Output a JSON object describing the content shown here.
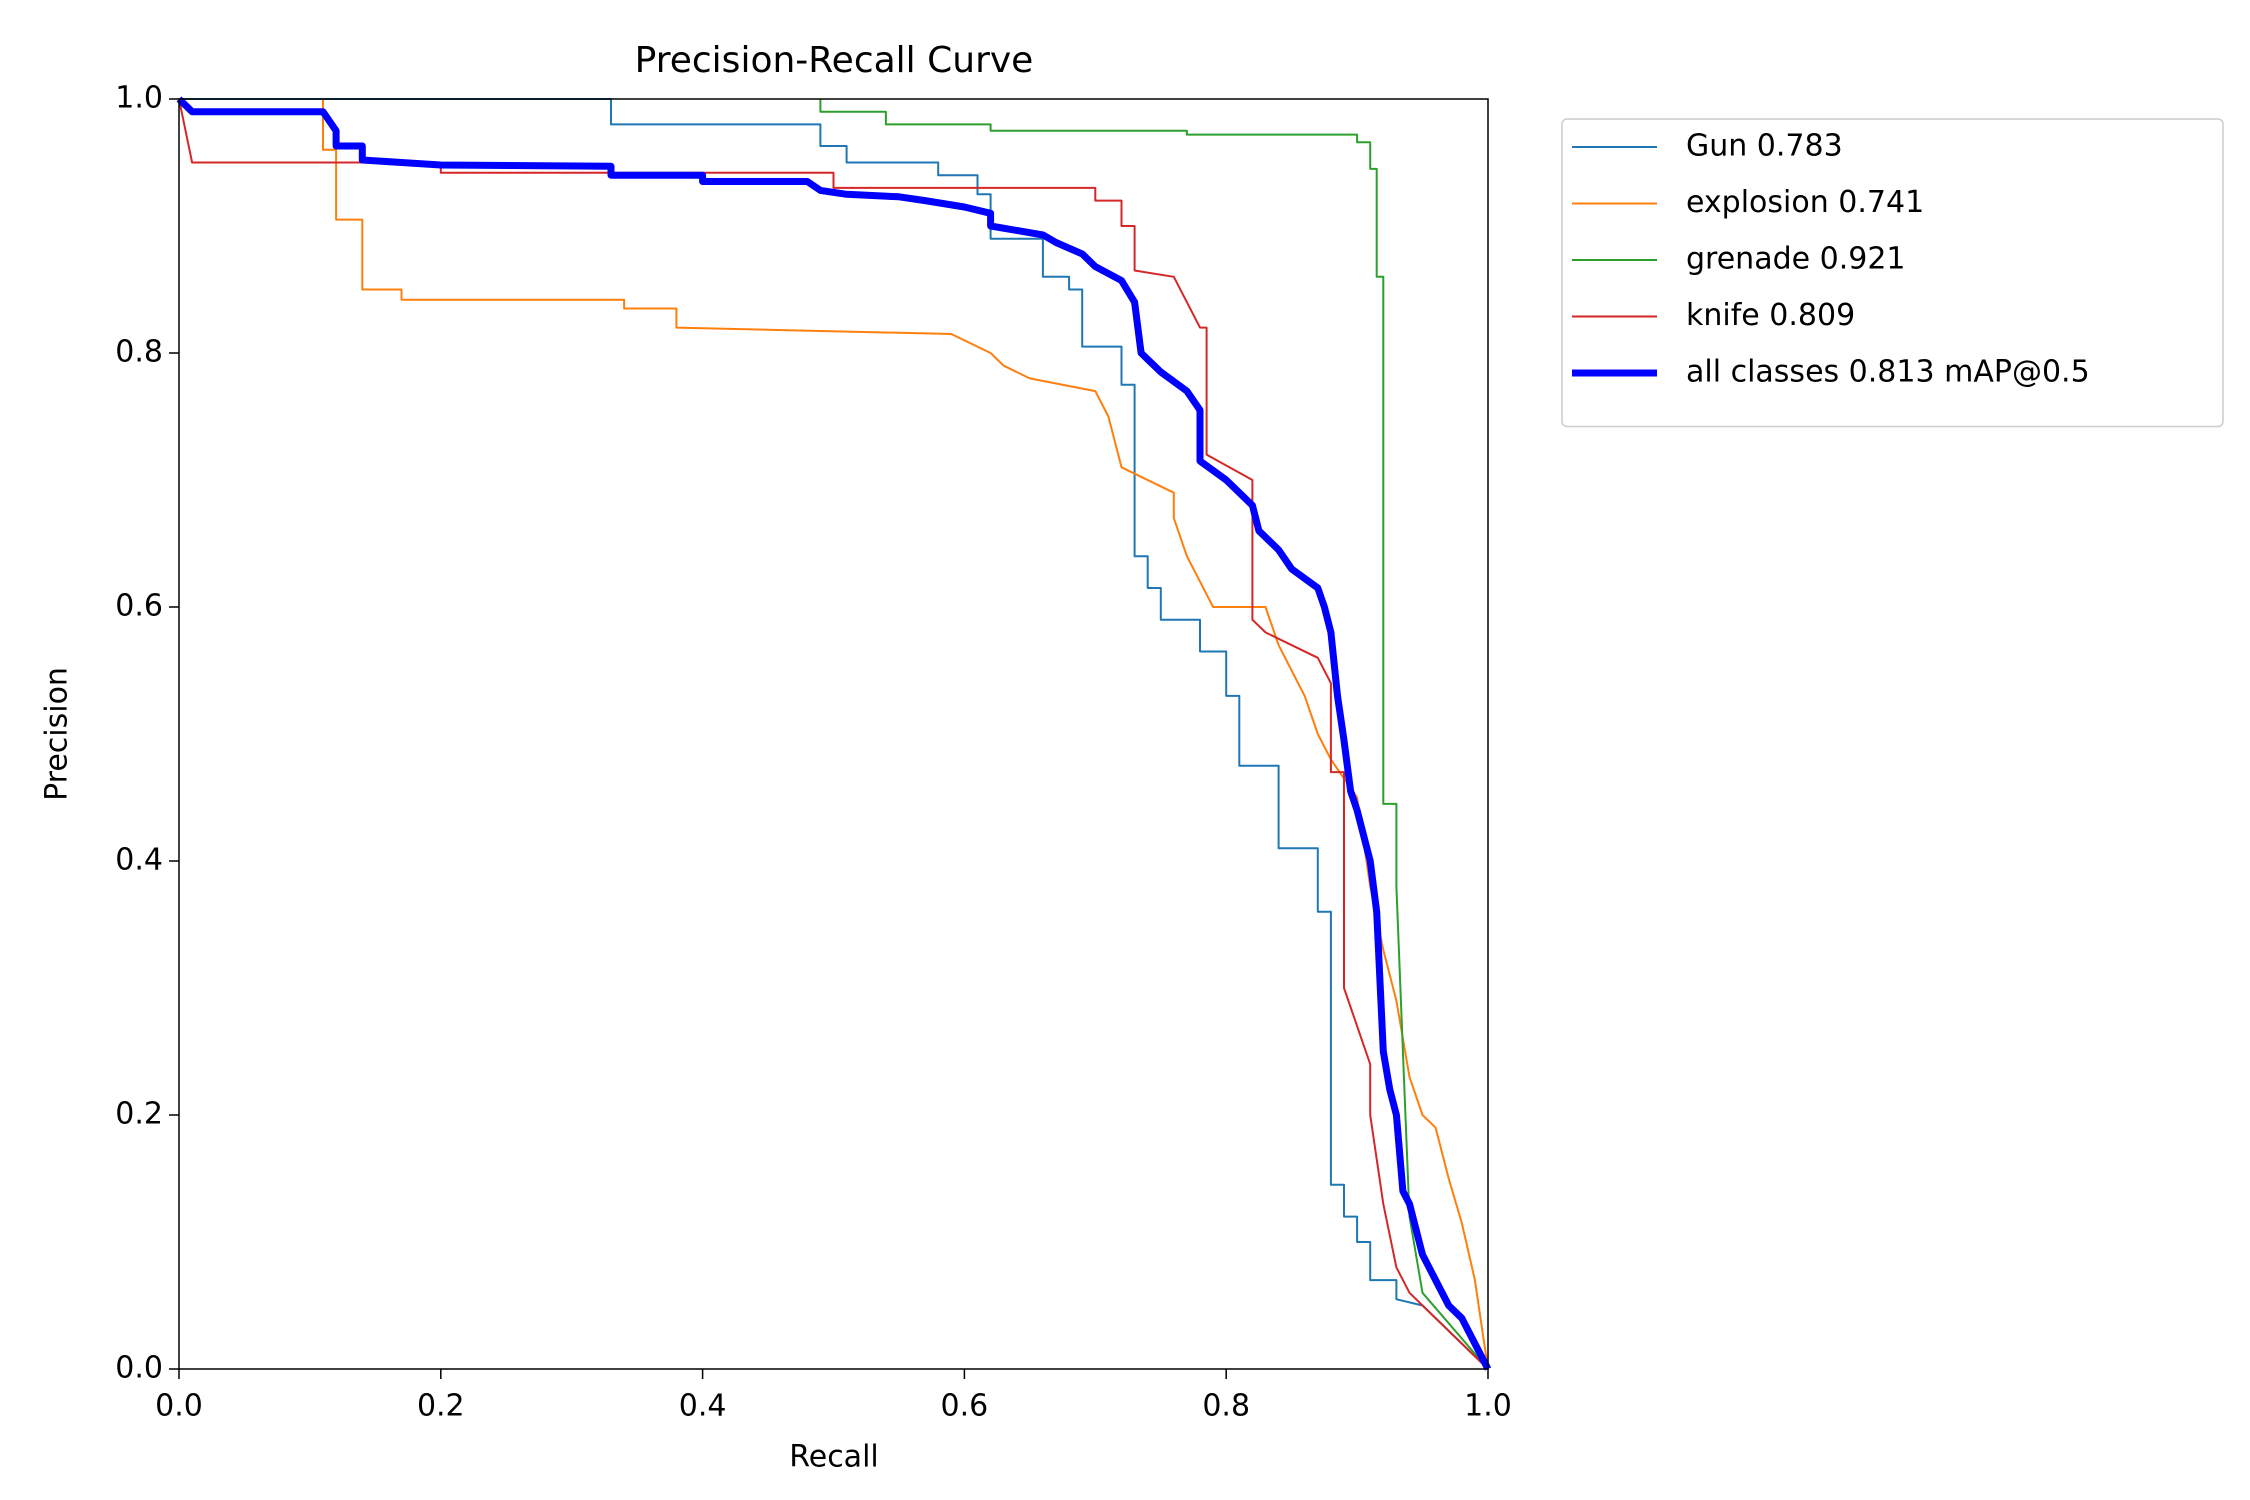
{
  "chart_data": {
    "type": "line",
    "title": "Precision-Recall Curve",
    "x_label": "Recall",
    "y_label": "Precision",
    "xlim": [
      0,
      1
    ],
    "ylim": [
      0,
      1
    ],
    "xticks": [
      {
        "value": 0,
        "label": "0.0"
      },
      0.2,
      0.4,
      0.6,
      0.8,
      {
        "value": 1,
        "label": "1.0"
      }
    ],
    "yticks": [
      {
        "value": 0,
        "label": "0.0"
      },
      0.2,
      0.4,
      0.6,
      0.8,
      {
        "value": 1,
        "label": "1.0"
      }
    ],
    "grid": false,
    "legend": "outside-upper-right",
    "series": [
      {
        "name": "Gun 0.783",
        "color": "#1f77b4",
        "width": 2,
        "x": [
          0,
          0.33,
          0.33,
          0.49,
          0.49,
          0.51,
          0.51,
          0.58,
          0.58,
          0.61,
          0.61,
          0.62,
          0.62,
          0.66,
          0.66,
          0.68,
          0.68,
          0.69,
          0.69,
          0.72,
          0.72,
          0.73,
          0.73,
          0.74,
          0.74,
          0.75,
          0.75,
          0.78,
          0.78,
          0.8,
          0.8,
          0.81,
          0.81,
          0.84,
          0.84,
          0.87,
          0.87,
          0.88,
          0.88,
          0.89,
          0.89,
          0.9,
          0.9,
          0.91,
          0.91,
          0.93,
          0.93,
          0.95,
          1.0
        ],
        "values": [
          1.0,
          1.0,
          0.98,
          0.98,
          0.963,
          0.963,
          0.95,
          0.95,
          0.94,
          0.94,
          0.925,
          0.925,
          0.89,
          0.89,
          0.86,
          0.86,
          0.85,
          0.85,
          0.805,
          0.805,
          0.775,
          0.775,
          0.64,
          0.64,
          0.615,
          0.615,
          0.59,
          0.59,
          0.565,
          0.565,
          0.53,
          0.53,
          0.475,
          0.475,
          0.41,
          0.41,
          0.36,
          0.36,
          0.145,
          0.145,
          0.12,
          0.12,
          0.1,
          0.1,
          0.07,
          0.07,
          0.055,
          0.05,
          0.0
        ]
      },
      {
        "name": "explosion 0.741",
        "color": "#ff7f0e",
        "width": 2,
        "x": [
          0.11,
          0.11,
          0.12,
          0.12,
          0.14,
          0.14,
          0.17,
          0.17,
          0.34,
          0.34,
          0.38,
          0.38,
          0.59,
          0.62,
          0.63,
          0.65,
          0.7,
          0.71,
          0.72,
          0.73,
          0.76,
          0.76,
          0.77,
          0.78,
          0.79,
          0.83,
          0.84,
          0.85,
          0.86,
          0.87,
          0.88,
          0.9,
          0.91,
          0.92,
          0.93,
          0.94,
          0.95,
          0.96,
          0.97,
          0.98,
          0.99,
          1.0
        ],
        "values": [
          1.0,
          0.96,
          0.96,
          0.905,
          0.905,
          0.85,
          0.85,
          0.842,
          0.842,
          0.835,
          0.835,
          0.82,
          0.815,
          0.8,
          0.79,
          0.78,
          0.77,
          0.75,
          0.71,
          0.705,
          0.69,
          0.67,
          0.64,
          0.62,
          0.6,
          0.6,
          0.57,
          0.55,
          0.53,
          0.5,
          0.48,
          0.45,
          0.38,
          0.33,
          0.29,
          0.23,
          0.2,
          0.19,
          0.15,
          0.115,
          0.07,
          0.0
        ]
      },
      {
        "name": "grenade 0.921",
        "color": "#2ca02c",
        "width": 2,
        "x": [
          0.49,
          0.49,
          0.54,
          0.54,
          0.62,
          0.62,
          0.77,
          0.77,
          0.9,
          0.9,
          0.91,
          0.91,
          0.915,
          0.915,
          0.92,
          0.92,
          0.93,
          0.93,
          0.935,
          0.94,
          0.95,
          1.0
        ],
        "values": [
          1.0,
          0.99,
          0.99,
          0.98,
          0.98,
          0.975,
          0.975,
          0.972,
          0.972,
          0.966,
          0.966,
          0.945,
          0.945,
          0.86,
          0.86,
          0.445,
          0.445,
          0.38,
          0.25,
          0.12,
          0.06,
          0.0
        ]
      },
      {
        "name": "knife 0.809",
        "color": "#d62728",
        "width": 2,
        "x": [
          0,
          0.01,
          0.2,
          0.2,
          0.5,
          0.5,
          0.7,
          0.7,
          0.72,
          0.72,
          0.73,
          0.73,
          0.76,
          0.77,
          0.78,
          0.785,
          0.785,
          0.82,
          0.82,
          0.83,
          0.87,
          0.88,
          0.88,
          0.89,
          0.89,
          0.9,
          0.91,
          0.91,
          0.92,
          0.93,
          0.94,
          1.0
        ],
        "values": [
          1.0,
          0.95,
          0.95,
          0.942,
          0.942,
          0.93,
          0.93,
          0.92,
          0.92,
          0.9,
          0.9,
          0.865,
          0.86,
          0.84,
          0.82,
          0.82,
          0.72,
          0.7,
          0.59,
          0.58,
          0.56,
          0.54,
          0.47,
          0.47,
          0.3,
          0.27,
          0.24,
          0.2,
          0.13,
          0.08,
          0.06,
          0.0
        ]
      },
      {
        "name": "all classes 0.813 mAP@0.5",
        "color": "#0000ff",
        "width": 7,
        "x": [
          0,
          0.01,
          0.11,
          0.12,
          0.12,
          0.14,
          0.14,
          0.17,
          0.2,
          0.33,
          0.33,
          0.4,
          0.4,
          0.48,
          0.49,
          0.51,
          0.55,
          0.57,
          0.6,
          0.62,
          0.62,
          0.66,
          0.67,
          0.69,
          0.7,
          0.72,
          0.73,
          0.735,
          0.75,
          0.77,
          0.78,
          0.78,
          0.8,
          0.82,
          0.825,
          0.84,
          0.85,
          0.87,
          0.875,
          0.88,
          0.885,
          0.89,
          0.895,
          0.9,
          0.91,
          0.915,
          0.92,
          0.925,
          0.93,
          0.935,
          0.94,
          0.95,
          0.96,
          0.97,
          0.98,
          0.99,
          1.0
        ],
        "values": [
          1.0,
          0.99,
          0.99,
          0.975,
          0.963,
          0.963,
          0.952,
          0.95,
          0.948,
          0.947,
          0.94,
          0.94,
          0.935,
          0.935,
          0.928,
          0.925,
          0.923,
          0.92,
          0.915,
          0.91,
          0.9,
          0.893,
          0.887,
          0.878,
          0.868,
          0.857,
          0.84,
          0.8,
          0.785,
          0.77,
          0.755,
          0.715,
          0.7,
          0.68,
          0.66,
          0.645,
          0.63,
          0.615,
          0.6,
          0.58,
          0.53,
          0.495,
          0.455,
          0.44,
          0.4,
          0.36,
          0.25,
          0.22,
          0.2,
          0.14,
          0.13,
          0.09,
          0.07,
          0.05,
          0.04,
          0.02,
          0.0
        ]
      }
    ]
  }
}
